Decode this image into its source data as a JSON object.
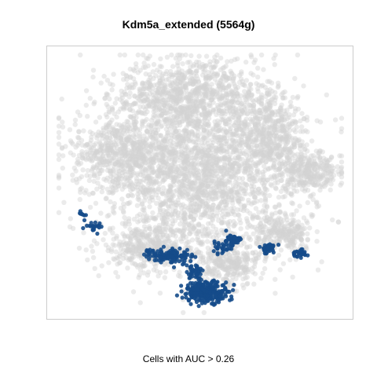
{
  "chart_data": {
    "type": "scatter",
    "title": "Kdm5a_extended (5564g)",
    "caption": "Cells with AUC > 0.26",
    "xlabel": "",
    "ylabel": "",
    "axes_visible": false,
    "grid": false,
    "legend": "none",
    "background_color": "#d3d3d3",
    "highlight_color": "#154b8a",
    "xlim": [
      0,
      100
    ],
    "ylim": [
      0,
      100
    ],
    "background_clusters": [
      {
        "cx": 50,
        "cy": 55,
        "rx": 36,
        "ry": 34,
        "n": 2600
      },
      {
        "cx": 45,
        "cy": 85,
        "rx": 24,
        "ry": 12,
        "n": 700
      },
      {
        "cx": 22,
        "cy": 62,
        "rx": 17,
        "ry": 13,
        "n": 500
      },
      {
        "cx": 74,
        "cy": 70,
        "rx": 11,
        "ry": 16,
        "n": 400
      },
      {
        "cx": 88,
        "cy": 55,
        "rx": 10,
        "ry": 8,
        "n": 280
      },
      {
        "cx": 80,
        "cy": 30,
        "rx": 10,
        "ry": 7,
        "n": 220
      },
      {
        "cx": 32,
        "cy": 25,
        "rx": 16,
        "ry": 8,
        "n": 360
      },
      {
        "cx": 60,
        "cy": 18,
        "rx": 10,
        "ry": 8,
        "n": 260
      }
    ],
    "highlight_clusters": [
      {
        "cx": 52,
        "cy": 8,
        "rx": 8,
        "ry": 4,
        "n": 260
      },
      {
        "cx": 40,
        "cy": 22,
        "rx": 7,
        "ry": 3,
        "n": 110
      },
      {
        "cx": 48,
        "cy": 16,
        "rx": 3,
        "ry": 3,
        "n": 45
      },
      {
        "cx": 61,
        "cy": 28,
        "rx": 3,
        "ry": 2.5,
        "n": 45
      },
      {
        "cx": 74,
        "cy": 25,
        "rx": 3,
        "ry": 2,
        "n": 35
      },
      {
        "cx": 85,
        "cy": 23,
        "rx": 3,
        "ry": 1.5,
        "n": 30
      },
      {
        "cx": 12,
        "cy": 33,
        "rx": 4,
        "ry": 2,
        "n": 22
      },
      {
        "cx": 8,
        "cy": 38,
        "rx": 1.5,
        "ry": 1,
        "n": 8
      },
      {
        "cx": 32,
        "cy": 23,
        "rx": 2,
        "ry": 1.5,
        "n": 15
      },
      {
        "cx": 57,
        "cy": 25,
        "rx": 4,
        "ry": 2,
        "n": 25
      }
    ]
  }
}
